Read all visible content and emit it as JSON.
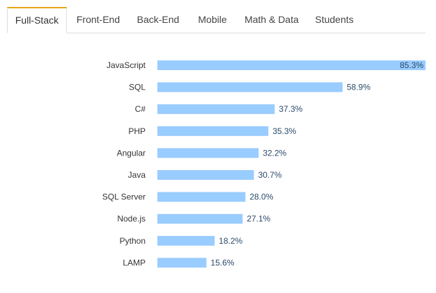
{
  "tabs": [
    {
      "label": "Full-Stack",
      "active": true
    },
    {
      "label": "Front-End",
      "active": false
    },
    {
      "label": "Back-End",
      "active": false
    },
    {
      "label": "Mobile",
      "active": false
    },
    {
      "label": "Math & Data",
      "active": false
    },
    {
      "label": "Students",
      "active": false
    }
  ],
  "colors": {
    "bar": "#99ccff",
    "tab_accent": "#e8a317"
  },
  "chart_data": {
    "type": "bar",
    "orientation": "horizontal",
    "categories": [
      "JavaScript",
      "SQL",
      "C#",
      "PHP",
      "Angular",
      "Java",
      "SQL Server",
      "Node.js",
      "Python",
      "LAMP"
    ],
    "values": [
      85.3,
      58.9,
      37.3,
      35.3,
      32.2,
      30.7,
      28.0,
      27.1,
      18.2,
      15.6
    ],
    "value_labels": [
      "85.3%",
      "58.9%",
      "37.3%",
      "35.3%",
      "32.2%",
      "30.7%",
      "28.0%",
      "27.1%",
      "18.2%",
      "15.6%"
    ],
    "xlim": [
      0,
      85.3
    ],
    "grid": false,
    "title": "",
    "xlabel": "",
    "ylabel": ""
  }
}
